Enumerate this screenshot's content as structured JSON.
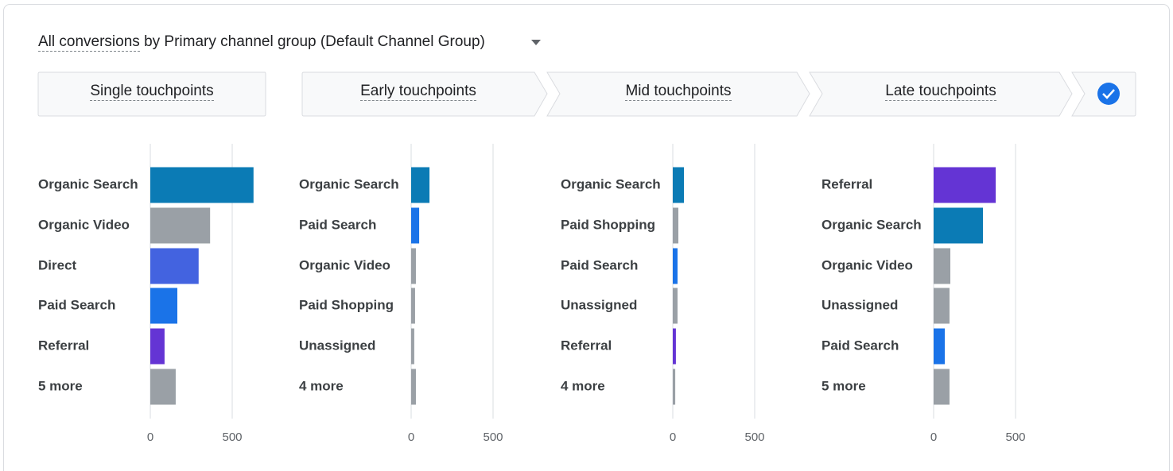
{
  "header": {
    "metric": "All conversions",
    "by": "by",
    "dimension": "Primary channel group (Default Channel Group)"
  },
  "chart_data": [
    {
      "type": "bar",
      "orientation": "horizontal",
      "title": "Single touchpoints",
      "categories": [
        "Organic Search",
        "Organic Video",
        "Direct",
        "Paid Search",
        "Referral",
        "5 more"
      ],
      "values": [
        630,
        365,
        295,
        165,
        87,
        155
      ],
      "colors": [
        "#0b7bb5",
        "#9aa0a6",
        "#4363e0",
        "#1a73e8",
        "#6434d4",
        "#9aa0a6"
      ],
      "xlim": [
        0,
        700
      ],
      "xticks": [
        0,
        500
      ],
      "grid": true
    },
    {
      "type": "bar",
      "orientation": "horizontal",
      "title": "Early touchpoints",
      "categories": [
        "Organic Search",
        "Paid Search",
        "Organic Video",
        "Paid Shopping",
        "Unassigned",
        "4 more"
      ],
      "values": [
        112,
        49,
        29,
        24,
        19,
        29
      ],
      "colors": [
        "#0b7bb5",
        "#1a73e8",
        "#9aa0a6",
        "#9aa0a6",
        "#9aa0a6",
        "#9aa0a6"
      ],
      "xlim": [
        0,
        700
      ],
      "xticks": [
        0,
        500
      ],
      "grid": true
    },
    {
      "type": "bar",
      "orientation": "horizontal",
      "title": "Mid touchpoints",
      "categories": [
        "Organic Search",
        "Paid Shopping",
        "Paid Search",
        "Unassigned",
        "Referral",
        "4 more"
      ],
      "values": [
        68,
        34,
        29,
        29,
        19,
        15
      ],
      "colors": [
        "#0b7bb5",
        "#9aa0a6",
        "#1a73e8",
        "#9aa0a6",
        "#6434d4",
        "#9aa0a6"
      ],
      "xlim": [
        0,
        700
      ],
      "xticks": [
        0,
        500
      ],
      "grid": true
    },
    {
      "type": "bar",
      "orientation": "horizontal",
      "title": "Late touchpoints",
      "categories": [
        "Referral",
        "Organic Search",
        "Organic Video",
        "Unassigned",
        "Paid Search",
        "5 more"
      ],
      "values": [
        379,
        301,
        102,
        97,
        68,
        97
      ],
      "colors": [
        "#6434d4",
        "#0b7bb5",
        "#9aa0a6",
        "#9aa0a6",
        "#1a73e8",
        "#9aa0a6"
      ],
      "xlim": [
        0,
        700
      ],
      "xticks": [
        0,
        500
      ],
      "grid": true
    }
  ]
}
